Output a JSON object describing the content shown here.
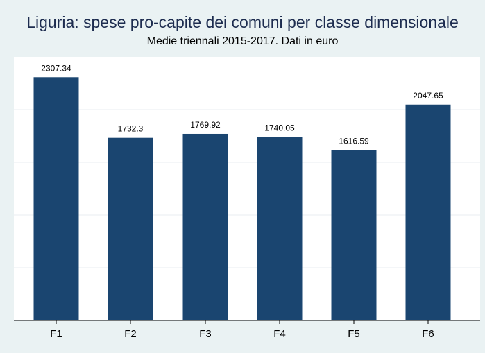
{
  "chart_data": {
    "type": "bar",
    "title": "Liguria: spese pro-capite dei comuni per classe dimensionale",
    "subtitle": "Medie triennali 2015-2017. Dati in euro",
    "categories": [
      "F1",
      "F2",
      "F3",
      "F4",
      "F5",
      "F6"
    ],
    "values": [
      2307.34,
      1732.3,
      1769.92,
      1740.05,
      1616.59,
      2047.65
    ],
    "value_labels": [
      "2307.34",
      "1732.3",
      "1769.92",
      "1740.05",
      "1616.59",
      "2047.65"
    ],
    "xlabel": "",
    "ylabel": "",
    "ylim": [
      0,
      2500
    ],
    "grid": true,
    "legend": "none",
    "colors": {
      "bar": "#1a4570",
      "background": "#eaf2f3",
      "plot_background": "#ffffff",
      "grid": "#e8eef0",
      "title": "#1d2c4f"
    }
  }
}
